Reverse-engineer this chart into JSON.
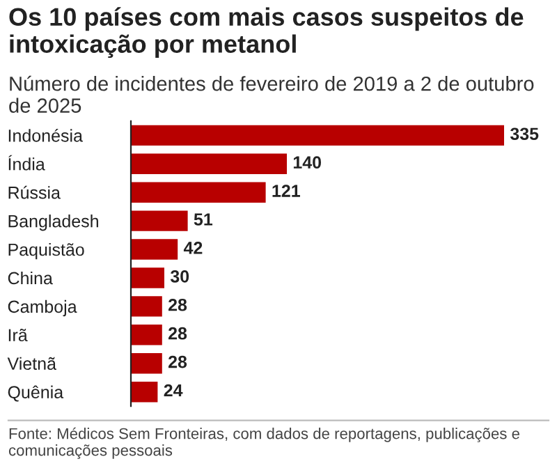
{
  "chart_data": {
    "type": "bar",
    "orientation": "horizontal",
    "title": "Os 10 países com mais casos suspeitos de intoxicação por metanol",
    "subtitle": "Número de incidentes de fevereiro de 2019 a 2 de outubro de 2025",
    "categories": [
      "Indonésia",
      "Índia",
      "Rússia",
      "Bangladesh",
      "Paquistão",
      "China",
      "Camboja",
      "Irã",
      "Vietnã",
      "Quênia"
    ],
    "values": [
      335,
      140,
      121,
      51,
      42,
      30,
      28,
      28,
      28,
      24
    ],
    "color": "#b80000",
    "data_labels": true,
    "grid": false,
    "legend": false,
    "annotations": [
      "Fonte: Médicos Sem Fronteiras, com dados de reportagens, publicações e comunicações pessoais"
    ]
  }
}
